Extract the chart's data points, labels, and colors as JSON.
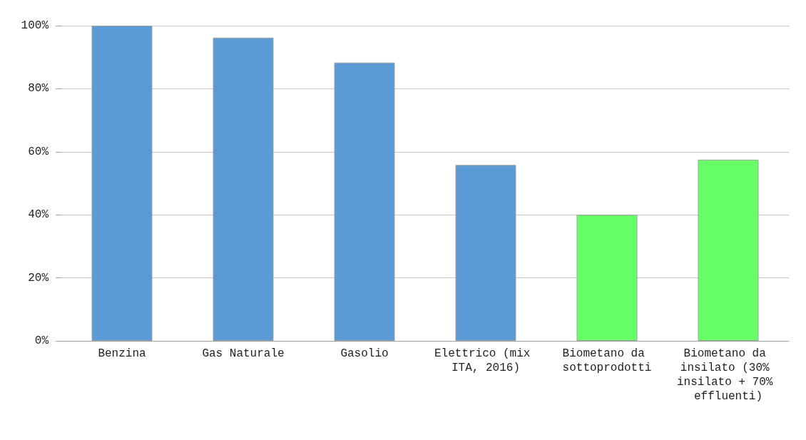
{
  "chart_data": {
    "type": "bar",
    "categories": [
      "Benzina",
      "Gas Naturale",
      "Gasolio",
      "Elettrico (mix ITA, 2016)",
      "Biometano da sottoprodotti",
      "Biometano da insilato (30% insilato + 70% effluenti)"
    ],
    "values": [
      100,
      96.2,
      88.3,
      55.8,
      40,
      57.5
    ],
    "colors": [
      "#5b9bd5",
      "#5b9bd5",
      "#5b9bd5",
      "#5b9bd5",
      "#66ff66",
      "#66ff66"
    ],
    "ylim": [
      0,
      100
    ],
    "yticks": [
      {
        "value": 0,
        "label": "0%"
      },
      {
        "value": 20,
        "label": "20%"
      },
      {
        "value": 40,
        "label": "40%"
      },
      {
        "value": 60,
        "label": "60%"
      },
      {
        "value": 80,
        "label": "80%"
      },
      {
        "value": 100,
        "label": "100%"
      }
    ],
    "grid": "y"
  }
}
